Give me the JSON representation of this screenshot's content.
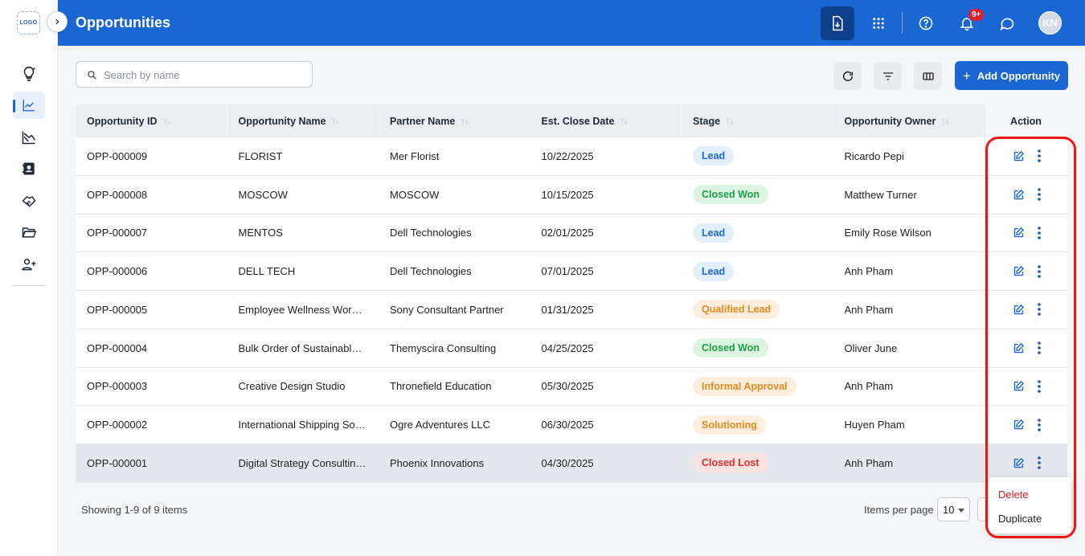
{
  "app": {
    "logo_text": "LOGO",
    "page_title": "Opportunities",
    "user_initials": "KN",
    "notification_count": "9+"
  },
  "sidebar": {
    "items": [
      {
        "icon": "lightbulb-icon",
        "name": "sidebar-item-ideas"
      },
      {
        "icon": "trending-chart-icon",
        "name": "sidebar-item-opportunities",
        "active": true
      },
      {
        "icon": "line-chart-icon",
        "name": "sidebar-item-reports"
      },
      {
        "icon": "contact-book-icon",
        "name": "sidebar-item-contacts"
      },
      {
        "icon": "handshake-icon",
        "name": "sidebar-item-deals"
      },
      {
        "icon": "folder-icon",
        "name": "sidebar-item-documents"
      },
      {
        "icon": "add-user-icon",
        "name": "sidebar-item-add-user"
      }
    ]
  },
  "toolbar": {
    "search_placeholder": "Search by name",
    "add_label": "Add Opportunity"
  },
  "table": {
    "columns": [
      "Opportunity ID",
      "Opportunity Name",
      "Partner Name",
      "Est. Close Date",
      "Stage",
      "Opportunity Owner"
    ],
    "action_header": "Action",
    "rows": [
      {
        "id": "OPP-000009",
        "name": "FLORIST",
        "partner": "Mer Florist",
        "date": "10/22/2025",
        "stage": "Lead",
        "stage_type": "lead",
        "owner": "Ricardo Pepi"
      },
      {
        "id": "OPP-000008",
        "name": "MOSCOW",
        "partner": "MOSCOW",
        "date": "10/15/2025",
        "stage": "Closed Won",
        "stage_type": "won",
        "owner": "Matthew Turner"
      },
      {
        "id": "OPP-000007",
        "name": "MENTOS",
        "partner": "Dell Technologies",
        "date": "02/01/2025",
        "stage": "Lead",
        "stage_type": "lead",
        "owner": "Emily Rose Wilson"
      },
      {
        "id": "OPP-000006",
        "name": "DELL TECH",
        "partner": "Dell Technologies",
        "date": "07/01/2025",
        "stage": "Lead",
        "stage_type": "lead",
        "owner": "Anh Pham"
      },
      {
        "id": "OPP-000005",
        "name": "Employee Wellness Works...",
        "partner": "Sony Consultant Partner",
        "date": "01/31/2025",
        "stage": "Qualified Lead",
        "stage_type": "warn",
        "owner": "Anh Pham"
      },
      {
        "id": "OPP-000004",
        "name": "Bulk Order of Sustainable ...",
        "partner": "Themyscira Consulting",
        "date": "04/25/2025",
        "stage": "Closed Won",
        "stage_type": "won",
        "owner": "Oliver June"
      },
      {
        "id": "OPP-000003",
        "name": "Creative Design Studio",
        "partner": "Thronefield Education",
        "date": "05/30/2025",
        "stage": "Informal Approval",
        "stage_type": "warn",
        "owner": "Anh Pham"
      },
      {
        "id": "OPP-000002",
        "name": "International Shipping Solu...",
        "partner": "Ogre Adventures LLC",
        "date": "06/30/2025",
        "stage": "Solutioning",
        "stage_type": "warn",
        "owner": "Huyen Pham"
      },
      {
        "id": "OPP-000001",
        "name": "Digital Strategy Consulting...",
        "partner": "Phoenix Innovations",
        "date": "04/30/2025",
        "stage": "Closed Lost",
        "stage_type": "lost",
        "owner": "Anh Pham",
        "selected": true
      }
    ]
  },
  "footer": {
    "showing": "Showing 1-9 of 9 items",
    "items_per_page_label": "Items per page",
    "items_per_page_value": "10"
  },
  "row_menu": {
    "delete": "Delete",
    "duplicate": "Duplicate"
  },
  "colors": {
    "brand": "#1a66d2",
    "header_dark": "#0d3f8c",
    "highlight": "#f01414"
  }
}
